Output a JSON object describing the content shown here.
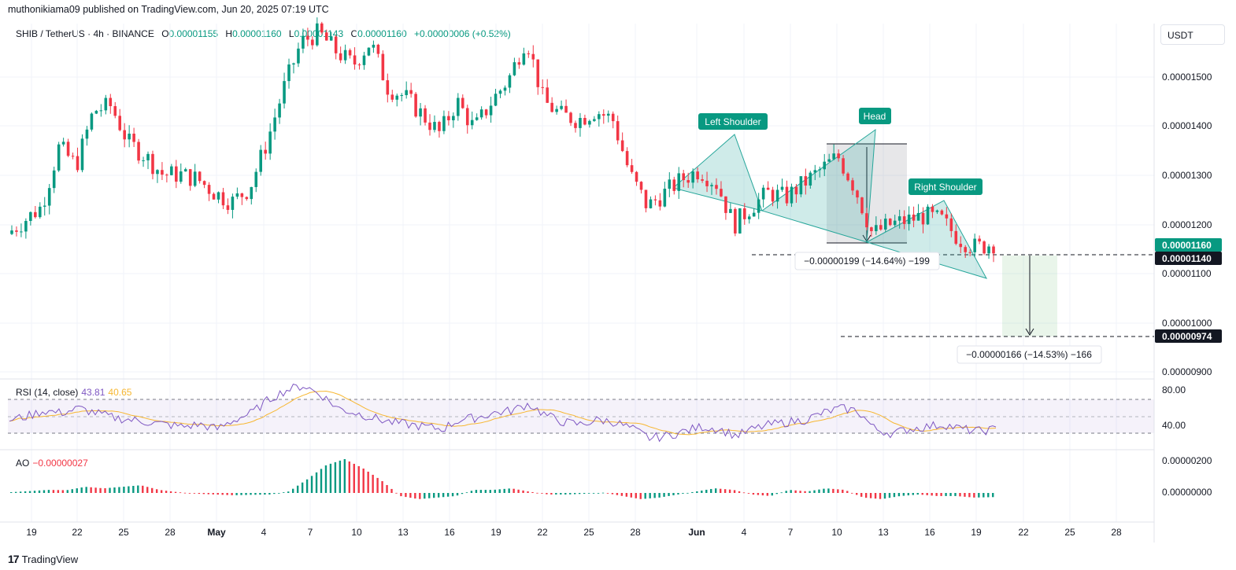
{
  "header": {
    "publisher": "muthonikiama09 published on TradingView.com, Jun 20, 2025 07:19 UTC"
  },
  "legend": {
    "symbol": "SHIB / TetherUS · 4h · BINANCE",
    "o_label": "O",
    "o": "0.00001155",
    "h_label": "H",
    "h": "0.00001160",
    "l_label": "L",
    "l": "0.00001143",
    "c_label": "C",
    "c": "0.00001160",
    "change": "+0.00000006 (+0.52%)"
  },
  "currency_button": "USDT",
  "colors": {
    "up": "#089981",
    "down": "#f23645",
    "pattern": "#26a69a",
    "rsi": "#7e57c2",
    "rsi_ma": "#f7b731"
  },
  "labels": {
    "left_shoulder": "Left Shoulder",
    "head": "Head",
    "right_shoulder": "Right Shoulder",
    "measure1": "−0.00000199 (−14.64%) −199",
    "measure2": "−0.00000166 (−14.53%) −166"
  },
  "price_axis": {
    "ticks": [
      "0.00001500",
      "0.00001400",
      "0.00001300",
      "0.00001200",
      "0.00001100",
      "0.00001000",
      "0.00000900"
    ],
    "current": "0.00001160",
    "level1": "0.00001140",
    "level2": "0.00000974"
  },
  "rsi": {
    "title": "RSI (14, close)",
    "value": "43.81",
    "ma": "40.65",
    "ticks": [
      "80.00",
      "40.00"
    ]
  },
  "ao": {
    "title": "AO",
    "value": "−0.00000027",
    "ticks": [
      "0.00000200",
      "0.00000000"
    ]
  },
  "time_axis": [
    "19",
    "22",
    "25",
    "28",
    "May",
    "4",
    "7",
    "10",
    "13",
    "16",
    "19",
    "22",
    "25",
    "28",
    "Jun",
    "4",
    "7",
    "10",
    "13",
    "16",
    "19",
    "22",
    "25",
    "28"
  ],
  "footer": {
    "brand": "TradingView",
    "logo": "17"
  },
  "chart_data": {
    "type": "candlestick",
    "symbol": "SHIB/USDT",
    "timeframe": "4h",
    "ylim": [
      8.7e-06,
      1.64e-05
    ],
    "price_path": [
      [
        "Apr 18",
        1.18e-05
      ],
      [
        "Apr 20",
        1.21e-05
      ],
      [
        "Apr 22",
        1.24e-05
      ],
      [
        "Apr 23",
        1.37e-05
      ],
      [
        "Apr 24",
        1.33e-05
      ],
      [
        "Apr 25",
        1.45e-05
      ],
      [
        "Apr 26",
        1.46e-05
      ],
      [
        "Apr 27",
        1.38e-05
      ],
      [
        "Apr 28",
        1.35e-05
      ],
      [
        "Apr 30",
        1.31e-05
      ],
      [
        "May 2",
        1.31e-05
      ],
      [
        "May 4",
        1.3e-05
      ],
      [
        "May 5",
        1.27e-05
      ],
      [
        "May 6",
        1.25e-05
      ],
      [
        "May 7",
        1.28e-05
      ],
      [
        "May 8",
        1.38e-05
      ],
      [
        "May 9",
        1.5e-05
      ],
      [
        "May 10",
        1.6e-05
      ],
      [
        "May 11",
        1.62e-05
      ],
      [
        "May 12",
        1.58e-05
      ],
      [
        "May 13",
        1.55e-05
      ],
      [
        "May 14",
        1.6e-05
      ],
      [
        "May 15",
        1.5e-05
      ],
      [
        "May 16",
        1.48e-05
      ],
      [
        "May 17",
        1.44e-05
      ],
      [
        "May 18",
        1.4e-05
      ],
      [
        "May 19",
        1.47e-05
      ],
      [
        "May 20",
        1.41e-05
      ],
      [
        "May 21",
        1.47e-05
      ],
      [
        "May 22",
        1.52e-05
      ],
      [
        "May 23",
        1.61e-05
      ],
      [
        "May 24",
        1.47e-05
      ],
      [
        "May 26",
        1.44e-05
      ],
      [
        "May 27",
        1.43e-05
      ],
      [
        "May 28",
        1.45e-05
      ],
      [
        "May 29",
        1.43e-05
      ],
      [
        "May 30",
        1.31e-05
      ],
      [
        "May 31",
        1.24e-05
      ],
      [
        "Jun 1",
        1.27e-05
      ],
      [
        "Jun 2",
        1.3e-05
      ],
      [
        "Jun 3",
        1.32e-05
      ],
      [
        "Jun 4",
        1.29e-05
      ],
      [
        "Jun 5",
        1.2e-05
      ],
      [
        "Jun 6",
        1.24e-05
      ],
      [
        "Jun 7",
        1.27e-05
      ],
      [
        "Jun 8",
        1.26e-05
      ],
      [
        "Jun 9",
        1.29e-05
      ],
      [
        "Jun 10",
        1.32e-05
      ],
      [
        "Jun 11",
        1.35e-05
      ],
      [
        "Jun 12",
        1.28e-05
      ],
      [
        "Jun 13",
        1.18e-05
      ],
      [
        "Jun 14",
        1.2e-05
      ],
      [
        "Jun 15",
        1.21e-05
      ],
      [
        "Jun 16",
        1.22e-05
      ],
      [
        "Jun 17",
        1.21e-05
      ],
      [
        "Jun 18",
        1.17e-05
      ],
      [
        "Jun 19",
        1.15e-05
      ],
      [
        "Jun 20",
        1.16e-05
      ]
    ],
    "rsi_range": [
      30,
      85
    ],
    "rsi_path": [
      52,
      55,
      60,
      58,
      62,
      58,
      54,
      52,
      50,
      48,
      46,
      48,
      44,
      52,
      58,
      70,
      78,
      82,
      74,
      62,
      58,
      54,
      50,
      48,
      46,
      44,
      52,
      54,
      58,
      60,
      66,
      56,
      50,
      48,
      52,
      50,
      44,
      36,
      38,
      42,
      46,
      44,
      38,
      44,
      48,
      50,
      52,
      58,
      62,
      60,
      44,
      40,
      44,
      46,
      48,
      44,
      42,
      43.81
    ],
    "ao_range": [
      -6e-07,
      2.4e-06
    ],
    "ao_path": [
      5e-08,
      1.2e-07,
      2e-07,
      1.8e-07,
      4e-07,
      3e-07,
      4e-07,
      5e-07,
      2e-07,
      5e-08,
      -5e-08,
      -1e-07,
      -1.5e-07,
      -1.2e-07,
      -1e-07,
      1e-07,
      9e-07,
      1.8e-06,
      2.2e-06,
      1.6e-06,
      8e-07,
      -2e-07,
      -4e-07,
      -3e-07,
      -2e-07,
      2e-07,
      2e-07,
      3e-07,
      8e-08,
      -1e-07,
      -1e-07,
      -5e-08,
      2e-08,
      -2e-07,
      -4e-07,
      -3e-07,
      -1e-07,
      1e-07,
      3e-07,
      2e-07,
      -1e-07,
      -2e-07,
      2e-07,
      1e-07,
      3e-07,
      2e-07,
      -3e-07,
      -4e-07,
      -2e-07,
      -1e-07,
      -2e-07,
      -2e-07,
      -3e-07,
      -2.7e-07
    ]
  }
}
